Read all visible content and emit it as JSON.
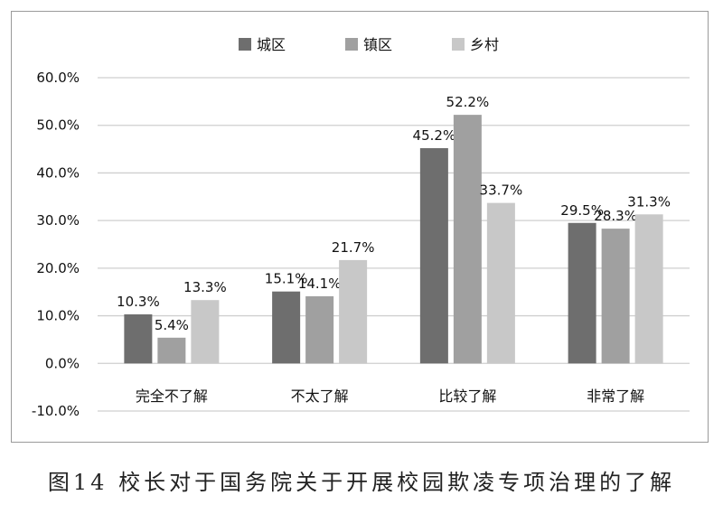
{
  "caption": "图14 校长对于国务院关于开展校园欺凌专项治理的了解",
  "chart_data": {
    "type": "bar",
    "categories": [
      "完全不了解",
      "不太了解",
      "比较了解",
      "非常了解"
    ],
    "series": [
      {
        "name": "城区",
        "values": [
          10.3,
          15.1,
          45.2,
          29.5
        ],
        "labels": [
          "10.3%",
          "15.1%",
          "45.2%",
          "29.5%"
        ],
        "color": "#6e6e6e"
      },
      {
        "name": "镇区",
        "values": [
          5.4,
          14.1,
          52.2,
          28.3
        ],
        "labels": [
          "5.4%",
          "14.1%",
          "52.2%",
          "28.3%"
        ],
        "color": "#a0a0a0"
      },
      {
        "name": "乡村",
        "values": [
          13.3,
          21.7,
          33.7,
          31.3
        ],
        "labels": [
          "13.3%",
          "21.7%",
          "33.7%",
          "31.3%"
        ],
        "color": "#c8c8c8"
      }
    ],
    "ylim": [
      -10,
      60
    ],
    "yticks": [
      60,
      50,
      40,
      30,
      20,
      10,
      0,
      -10
    ],
    "ytick_labels": [
      "60.0%",
      "50.0%",
      "40.0%",
      "30.0%",
      "20.0%",
      "10.0%",
      "0.0%",
      "-10.0%"
    ],
    "grid": true,
    "legend_position": "top-center"
  }
}
